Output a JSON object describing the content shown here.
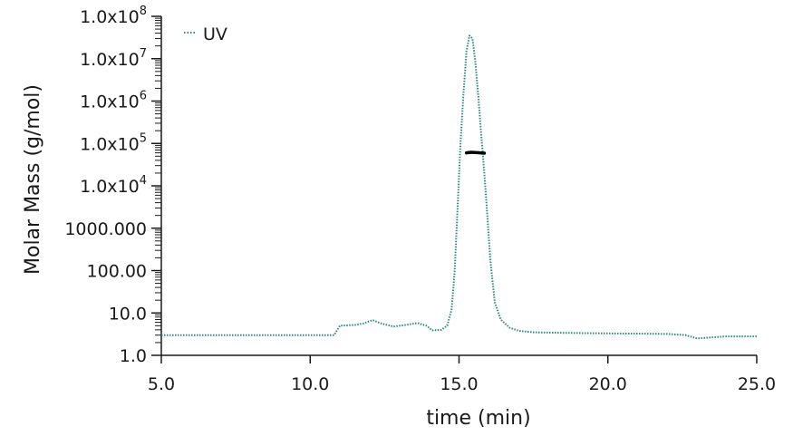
{
  "chart_data": {
    "type": "line",
    "xlabel": "time (min)",
    "ylabel": "Molar Mass (g/mol)",
    "xlim": [
      5.0,
      25.0
    ],
    "y_scale": "log",
    "ylim": [
      1.0,
      100000000.0
    ],
    "x_ticks": [
      "5.0",
      "10.0",
      "15.0",
      "20.0",
      "25.0"
    ],
    "x_tick_values": [
      5,
      10,
      15,
      20,
      25
    ],
    "y_ticks": [
      "1.0",
      "10.0",
      "100.00",
      "1000.000",
      "1.0x10",
      "1.0x10",
      "1.0x10",
      "1.0x10",
      "1.0x10"
    ],
    "y_tick_exponents": [
      "",
      "",
      "",
      "",
      "4",
      "5",
      "6",
      "7",
      "8"
    ],
    "y_tick_values": [
      1,
      10,
      100,
      1000,
      10000,
      100000,
      1000000,
      10000000,
      100000000
    ],
    "legend": {
      "position": "top-left",
      "entries": [
        "UV"
      ]
    },
    "series": [
      {
        "name": "UV",
        "color": "#2a8a7a",
        "style": "dotted",
        "x": [
          5.0,
          10.8,
          11.0,
          11.5,
          11.8,
          12.1,
          12.4,
          12.8,
          13.2,
          13.6,
          13.9,
          14.1,
          14.4,
          14.6,
          14.75,
          14.85,
          14.95,
          15.05,
          15.15,
          15.25,
          15.35,
          15.45,
          15.55,
          15.65,
          15.75,
          15.85,
          15.95,
          16.05,
          16.2,
          16.4,
          16.7,
          17.0,
          17.5,
          18.5,
          20.0,
          21.0,
          22.0,
          22.6,
          23.0,
          23.3,
          24.0,
          25.0
        ],
        "y": [
          3.0,
          3.0,
          5.0,
          5.2,
          5.7,
          6.8,
          5.6,
          4.8,
          5.2,
          5.8,
          5.0,
          3.9,
          4.0,
          5.0,
          12,
          90,
          3000,
          100000,
          1500000,
          15000000,
          35000000,
          30000000,
          8000000,
          1200000,
          150000,
          20000,
          2000,
          180,
          18,
          7,
          4.5,
          3.8,
          3.5,
          3.4,
          3.3,
          3.25,
          3.2,
          3.0,
          2.5,
          2.6,
          2.8,
          2.8
        ]
      }
    ],
    "molar_mass_trace": {
      "color": "#000000",
      "x": [
        15.25,
        15.4,
        15.55,
        15.7,
        15.85
      ],
      "y": [
        60000,
        62000,
        61000,
        60000,
        59000
      ]
    }
  }
}
